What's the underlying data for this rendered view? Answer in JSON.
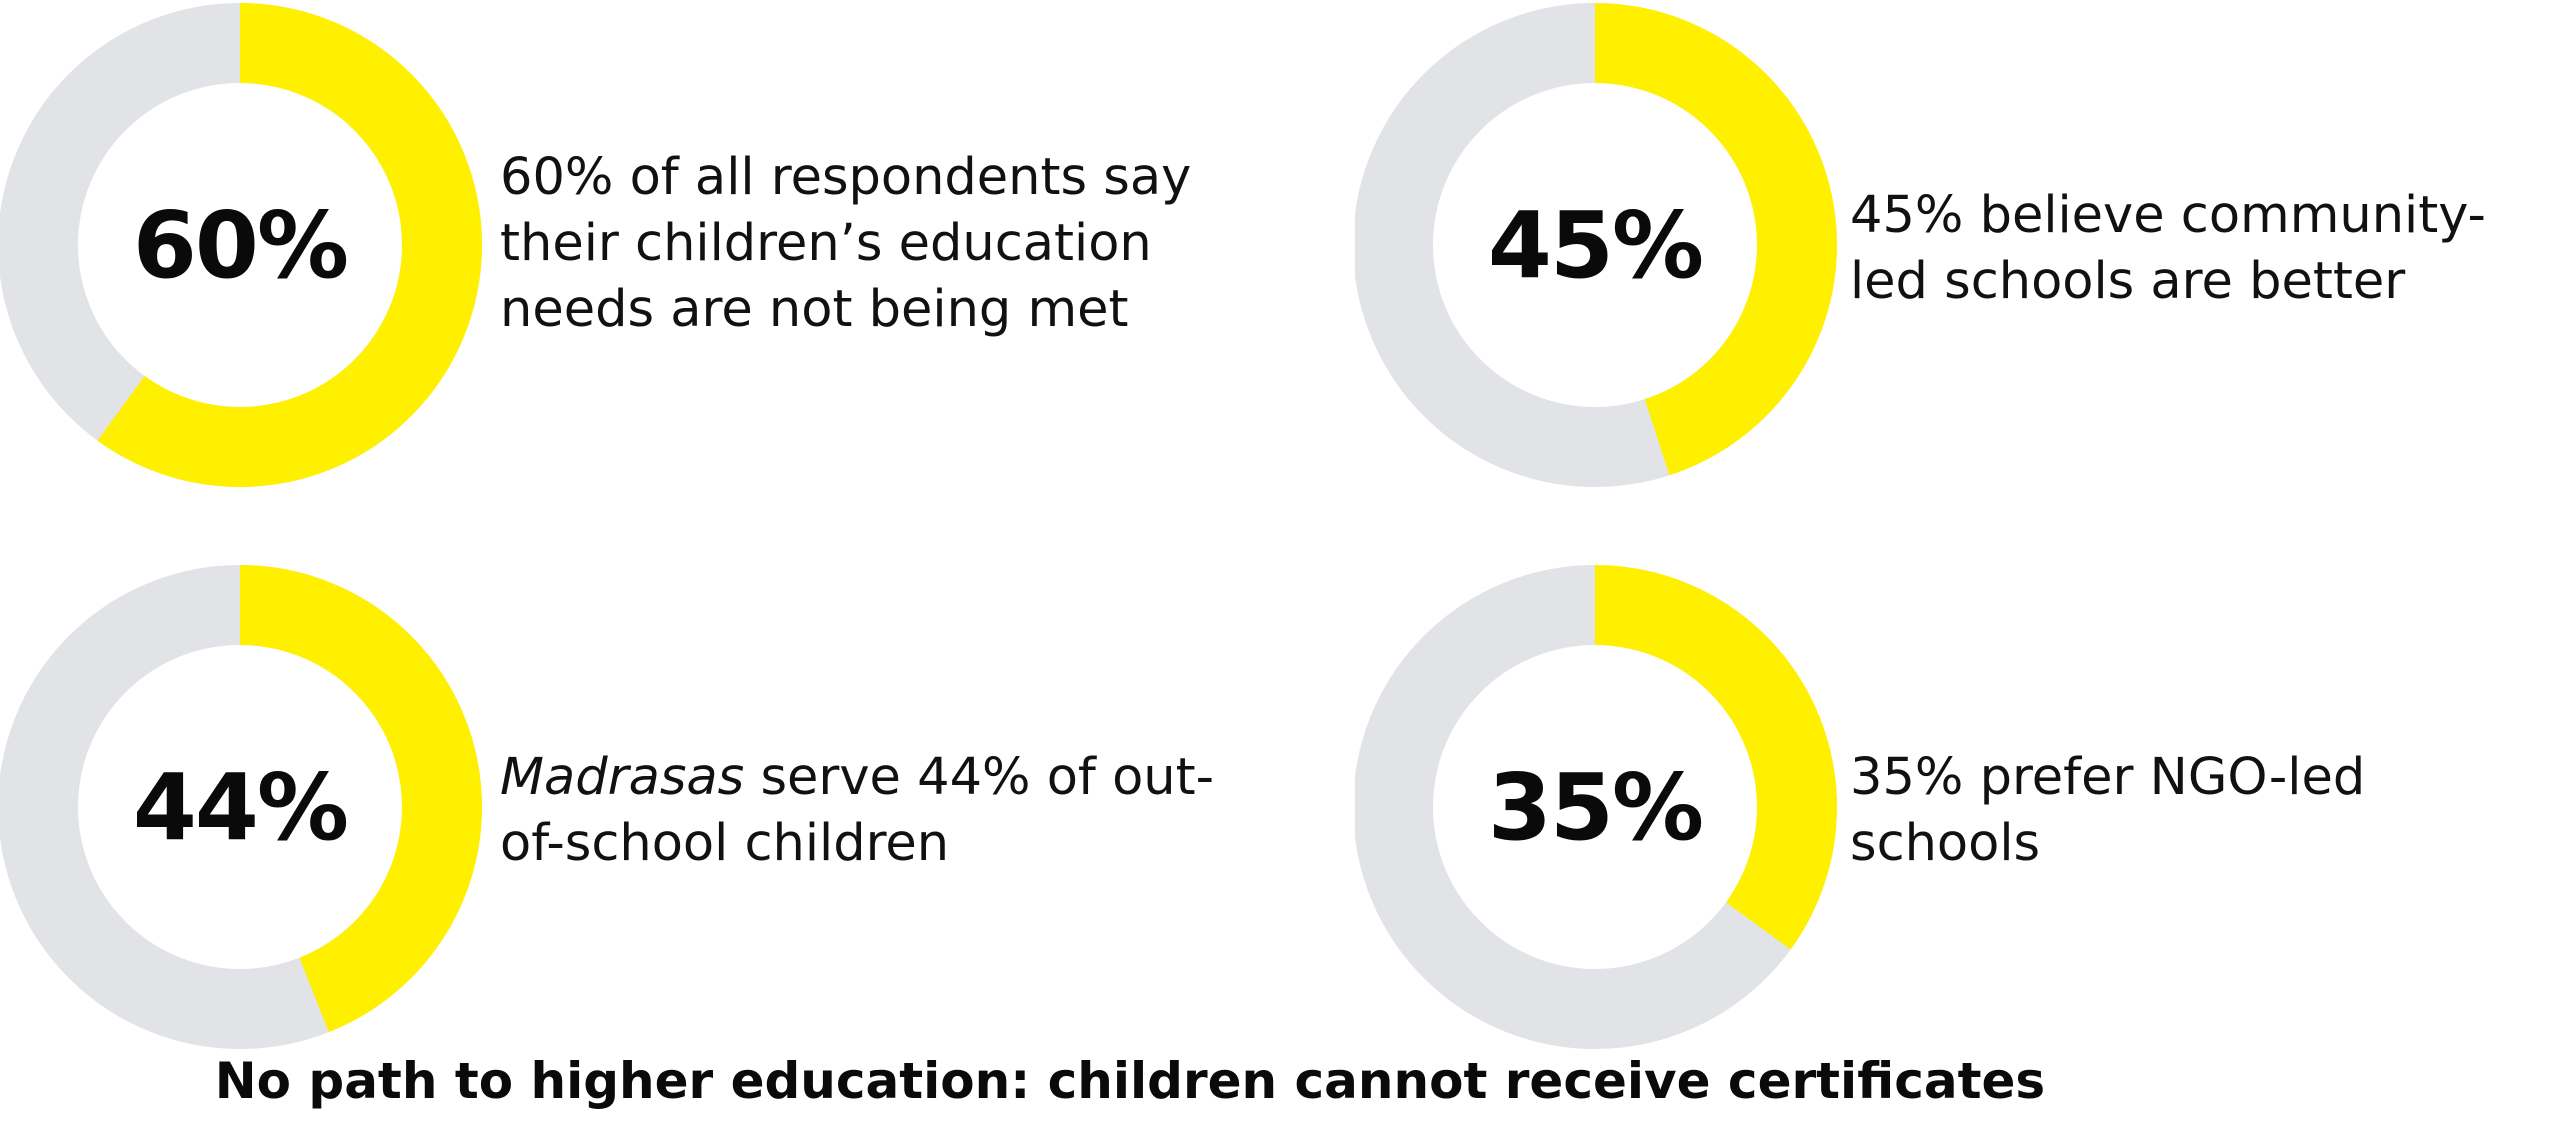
{
  "colors": {
    "accent": "#fff000",
    "track": "#e1e3e6",
    "text": "#111111"
  },
  "chart_data": [
    {
      "type": "pie",
      "values": [
        60,
        40
      ],
      "center_label": "60%",
      "description_lines": [
        "60% of all respondents say",
        "their children’s education",
        "needs are not being met"
      ]
    },
    {
      "type": "pie",
      "values": [
        45,
        55
      ],
      "center_label": "45%",
      "description_lines": [
        "45% believe community-",
        "led schools are better"
      ]
    },
    {
      "type": "pie",
      "values": [
        44,
        56
      ],
      "center_label": "44%",
      "description_lines": [
        "Madrasas serve 44% of out-",
        "of-school children"
      ],
      "description_emphasis": "Madrasas",
      "description_rest": " serve 44% of out-"
    },
    {
      "type": "pie",
      "values": [
        35,
        65
      ],
      "center_label": "35%",
      "description_lines": [
        "35% prefer NGO-led",
        "schools"
      ]
    }
  ],
  "footer": {
    "text": "No path to higher education: children cannot receive certificates"
  }
}
